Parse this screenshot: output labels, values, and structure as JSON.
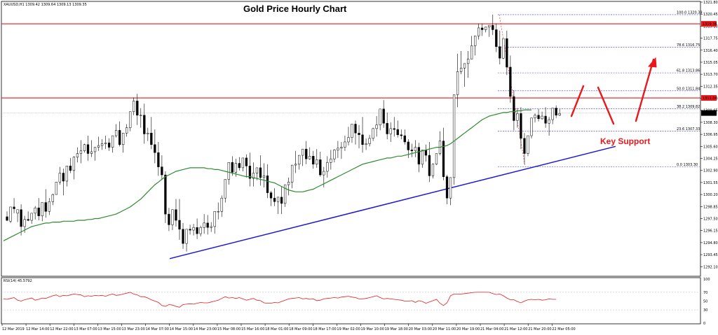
{
  "header": {
    "symbol_info": "XAUUSD,H1  1309.42 1309.64 1309.13 1309.35",
    "rsi_label": "RSI(14) 45.5792"
  },
  "colors": {
    "candle_up": "#ffffff",
    "candle_down": "#000000",
    "candle_outline": "#000000",
    "ma_line": "#2e8b2e",
    "trendline": "#1a1ad6",
    "resistance": "#e8191c",
    "arrows": "#e8191c",
    "rsi_line": "#e8191c",
    "fib_lines": "#3b3bd6",
    "label_bg": "#000000"
  },
  "chart_data": {
    "type": "candlestick",
    "title": "Gold Price Hourly Chart",
    "annotation": "Key Support",
    "ylim": [
      1291.1,
      1321.8
    ],
    "y_ticks": [
      "1321.80",
      "1320.45",
      "1319.10",
      "1317.75",
      "1316.40",
      "1315.05",
      "1313.70",
      "1312.35",
      "1311.00",
      "1309.65",
      "1308.30",
      "1306.95",
      "1305.60",
      "1304.25",
      "1302.90",
      "1301.55",
      "1300.20",
      "1298.85",
      "1297.50",
      "1296.15",
      "1294.80",
      "1293.45",
      "1292.10"
    ],
    "x_labels": [
      "12 Mar 2019",
      "12 Mar 14:00",
      "12 Mar 22:00",
      "13 Mar 07:00",
      "13 Mar 15:00",
      "13 Mar 23:00",
      "14 Mar 07:00",
      "14 Mar 15:00",
      "14 Mar 23:00",
      "15 Mar 08:00",
      "15 Mar 16:00",
      "18 Mar 01:00",
      "18 Mar 09:00",
      "18 Mar 17:00",
      "19 Mar 02:00",
      "19 Mar 10:00",
      "19 Mar 18:00",
      "20 Mar 03:00",
      "20 Mar 11:00",
      "20 Mar 19:00",
      "21 Mar 04:00",
      "21 Mar 12:00",
      "21 Mar 20:00",
      "22 Mar 05:00"
    ],
    "horizontal_levels": [
      {
        "label": "1319.36",
        "value": 1319.36
      },
      {
        "label": "1311.04",
        "value": 1311.04
      }
    ],
    "current_price_label": "1309.35",
    "current_price": 1309.35,
    "fibonacci": [
      {
        "label": "100.0 1320.39",
        "value": 1320.39
      },
      {
        "label": "78.6 1316.75",
        "value": 1316.75
      },
      {
        "label": "61.8 1313.86",
        "value": 1313.86
      },
      {
        "label": "50.0 1311.84",
        "value": 1311.84
      },
      {
        "label": "38.2 1309.82",
        "value": 1309.82
      },
      {
        "label": "23.6 1307.33",
        "value": 1307.33
      },
      {
        "label": "0.0 1303.30",
        "value": 1303.3
      }
    ],
    "trendline": {
      "from": [
        0,
        1293.0
      ],
      "to": [
        187,
        1305.6
      ]
    },
    "candles": [
      [
        1297.7,
        1298.3,
        1297.3,
        1297.2
      ],
      [
        1297.2,
        1297.6,
        1298.8,
        1297.0
      ],
      [
        1298.8,
        1299.8,
        1298.6,
        1298.1
      ],
      [
        1298.1,
        1298.4,
        1298.5,
        1297.1
      ],
      [
        1298.5,
        1299.1,
        1296.6,
        1295.6
      ],
      [
        1296.6,
        1297.8,
        1297.4,
        1295.9
      ],
      [
        1297.4,
        1298.3,
        1297.3,
        1297.2
      ],
      [
        1297.3,
        1298.0,
        1298.1,
        1296.9
      ],
      [
        1298.1,
        1298.9,
        1298.7,
        1297.4
      ],
      [
        1298.7,
        1299.8,
        1297.8,
        1297.3
      ],
      [
        1297.8,
        1298.6,
        1299.3,
        1297.2
      ],
      [
        1299.3,
        1300.8,
        1298.3,
        1297.6
      ],
      [
        1298.3,
        1299.8,
        1299.4,
        1297.9
      ],
      [
        1299.4,
        1300.3,
        1300.2,
        1299.0
      ],
      [
        1300.2,
        1301.6,
        1301.6,
        1300.2
      ],
      [
        1301.6,
        1303.3,
        1302.6,
        1301.3
      ],
      [
        1302.6,
        1303.1,
        1301.7,
        1300.1
      ],
      [
        1301.7,
        1303.3,
        1303.4,
        1301.1
      ],
      [
        1303.4,
        1304.3,
        1302.9,
        1302.6
      ],
      [
        1302.9,
        1304.5,
        1304.4,
        1301.9
      ],
      [
        1304.4,
        1305.5,
        1304.8,
        1303.8
      ],
      [
        1304.8,
        1306.3,
        1305.1,
        1303.7
      ],
      [
        1305.1,
        1305.9,
        1305.8,
        1304.9
      ],
      [
        1305.8,
        1306.8,
        1304.8,
        1304.0
      ],
      [
        1304.8,
        1306.3,
        1305.0,
        1304.4
      ],
      [
        1305.0,
        1305.2,
        1305.5,
        1304.0
      ],
      [
        1305.5,
        1306.7,
        1305.7,
        1305.1
      ],
      [
        1305.7,
        1306.4,
        1305.9,
        1305.2
      ],
      [
        1305.9,
        1306.8,
        1306.0,
        1305.3
      ],
      [
        1306.0,
        1306.5,
        1305.5,
        1305.1
      ],
      [
        1305.5,
        1306.4,
        1306.8,
        1304.9
      ],
      [
        1306.8,
        1308.1,
        1307.4,
        1306.6
      ],
      [
        1307.4,
        1308.4,
        1305.8,
        1305.6
      ],
      [
        1305.8,
        1306.7,
        1307.1,
        1304.9
      ],
      [
        1307.1,
        1308.1,
        1307.7,
        1306.7
      ],
      [
        1307.7,
        1309.0,
        1309.5,
        1307.3
      ],
      [
        1309.5,
        1311.1,
        1310.7,
        1309.1
      ],
      [
        1310.7,
        1311.5,
        1309.1,
        1308.0
      ],
      [
        1309.1,
        1309.9,
        1309.1,
        1307.7
      ],
      [
        1309.1,
        1310.4,
        1307.0,
        1305.9
      ],
      [
        1307.0,
        1307.7,
        1307.1,
        1306.2
      ],
      [
        1307.1,
        1308.9,
        1305.8,
        1305.3
      ],
      [
        1305.8,
        1307.5,
        1304.9,
        1303.7
      ],
      [
        1304.9,
        1306.1,
        1303.3,
        1302.3
      ],
      [
        1303.3,
        1304.6,
        1302.4,
        1301.9
      ],
      [
        1302.4,
        1302.8,
        1298.0,
        1297.0
      ],
      [
        1298.0,
        1298.7,
        1296.8,
        1296.1
      ],
      [
        1296.8,
        1298.5,
        1298.5,
        1296.2
      ],
      [
        1298.5,
        1299.7,
        1297.3,
        1296.6
      ],
      [
        1297.3,
        1299.7,
        1296.3,
        1295.1
      ],
      [
        1296.3,
        1297.0,
        1294.7,
        1294.1
      ],
      [
        1294.7,
        1296.1,
        1296.3,
        1293.8
      ],
      [
        1296.3,
        1296.8,
        1296.2,
        1295.7
      ],
      [
        1296.2,
        1296.9,
        1296.5,
        1295.6
      ],
      [
        1296.5,
        1297.5,
        1295.8,
        1295.2
      ],
      [
        1295.8,
        1296.7,
        1296.5,
        1295.5
      ],
      [
        1296.5,
        1298.0,
        1297.0,
        1295.8
      ],
      [
        1297.0,
        1297.9,
        1296.5,
        1295.7
      ],
      [
        1296.5,
        1297.1,
        1296.6,
        1296.0
      ],
      [
        1296.6,
        1298.1,
        1298.3,
        1295.8
      ],
      [
        1298.3,
        1299.3,
        1298.3,
        1297.4
      ],
      [
        1298.3,
        1300.1,
        1299.8,
        1297.7
      ],
      [
        1299.8,
        1300.8,
        1301.9,
        1299.3
      ],
      [
        1301.9,
        1303.5,
        1303.8,
        1301.3
      ],
      [
        1303.8,
        1304.5,
        1302.7,
        1302.3
      ],
      [
        1302.7,
        1304.2,
        1303.7,
        1302.2
      ],
      [
        1303.7,
        1304.4,
        1303.2,
        1302.9
      ],
      [
        1303.2,
        1304.0,
        1304.3,
        1302.8
      ],
      [
        1304.3,
        1304.7,
        1303.4,
        1302.1
      ],
      [
        1303.4,
        1304.9,
        1302.0,
        1301.1
      ],
      [
        1302.0,
        1303.8,
        1302.6,
        1301.1
      ],
      [
        1302.6,
        1303.2,
        1303.2,
        1301.8
      ],
      [
        1303.2,
        1304.6,
        1302.1,
        1301.2
      ],
      [
        1302.1,
        1303.7,
        1302.3,
        1301.0
      ],
      [
        1302.3,
        1303.6,
        1300.4,
        1299.8
      ],
      [
        1300.4,
        1300.6,
        1299.8,
        1298.9
      ],
      [
        1299.8,
        1300.9,
        1299.4,
        1298.9
      ],
      [
        1299.4,
        1299.8,
        1299.9,
        1298.0
      ],
      [
        1299.9,
        1301.1,
        1299.2,
        1298.0
      ],
      [
        1299.2,
        1300.3,
        1301.3,
        1298.8
      ],
      [
        1301.3,
        1302.1,
        1301.6,
        1300.1
      ],
      [
        1301.6,
        1303.5,
        1303.5,
        1300.9
      ],
      [
        1303.5,
        1305.1,
        1303.6,
        1302.6
      ],
      [
        1303.6,
        1304.4,
        1304.6,
        1303.0
      ],
      [
        1304.6,
        1305.2,
        1305.3,
        1303.4
      ],
      [
        1305.3,
        1306.2,
        1304.2,
        1303.6
      ],
      [
        1304.2,
        1305.5,
        1304.5,
        1304.1
      ],
      [
        1304.5,
        1305.1,
        1303.6,
        1303.1
      ],
      [
        1303.6,
        1305.3,
        1304.1,
        1303.2
      ],
      [
        1304.1,
        1305.0,
        1302.4,
        1302.2
      ],
      [
        1302.4,
        1303.3,
        1302.8,
        1301.0
      ],
      [
        1302.8,
        1304.5,
        1303.8,
        1302.1
      ],
      [
        1303.8,
        1305.2,
        1304.2,
        1303.0
      ],
      [
        1304.2,
        1305.3,
        1305.2,
        1303.8
      ],
      [
        1305.2,
        1306.2,
        1305.4,
        1304.3
      ],
      [
        1305.4,
        1306.1,
        1305.5,
        1304.2
      ],
      [
        1305.5,
        1306.8,
        1306.1,
        1305.1
      ],
      [
        1306.1,
        1307.8,
        1306.6,
        1305.7
      ],
      [
        1306.6,
        1307.4,
        1308.1,
        1306.0
      ],
      [
        1308.1,
        1308.5,
        1307.1,
        1305.8
      ],
      [
        1307.1,
        1308.0,
        1306.9,
        1305.4
      ],
      [
        1306.9,
        1308.9,
        1305.8,
        1304.9
      ],
      [
        1305.8,
        1306.5,
        1305.9,
        1305.2
      ],
      [
        1305.9,
        1306.9,
        1306.5,
        1305.6
      ],
      [
        1306.5,
        1307.7,
        1307.6,
        1306.2
      ],
      [
        1307.6,
        1309.0,
        1308.0,
        1306.7
      ],
      [
        1308.0,
        1309.5,
        1309.8,
        1307.4
      ],
      [
        1309.8,
        1310.8,
        1308.2,
        1307.7
      ],
      [
        1308.2,
        1309.4,
        1307.0,
        1306.4
      ],
      [
        1307.0,
        1308.3,
        1307.6,
        1306.1
      ],
      [
        1307.6,
        1308.9,
        1307.5,
        1306.7
      ],
      [
        1307.5,
        1308.5,
        1306.9,
        1306.6
      ],
      [
        1306.9,
        1307.5,
        1306.8,
        1306.4
      ],
      [
        1306.8,
        1307.5,
        1306.1,
        1305.8
      ],
      [
        1306.1,
        1306.4,
        1305.2,
        1304.3
      ],
      [
        1305.2,
        1305.9,
        1305.1,
        1304.4
      ],
      [
        1305.1,
        1306.3,
        1305.5,
        1304.4
      ],
      [
        1305.5,
        1306.0,
        1303.6,
        1302.7
      ],
      [
        1303.6,
        1304.8,
        1305.2,
        1303.2
      ],
      [
        1305.2,
        1305.8,
        1304.6,
        1303.9
      ],
      [
        1304.6,
        1306.1,
        1302.3,
        1301.6
      ],
      [
        1302.3,
        1303.7,
        1303.6,
        1302.0
      ],
      [
        1303.6,
        1304.8,
        1304.8,
        1303.5
      ],
      [
        1304.8,
        1307.3,
        1306.2,
        1304.6
      ],
      [
        1306.2,
        1307.7,
        1302.2,
        1301.8
      ],
      [
        1302.2,
        1302.4,
        1299.8,
        1299.1
      ],
      [
        1299.8,
        1300.2,
        1302.1,
        1299.0
      ],
      [
        1302.1,
        1303.9,
        1311.4,
        1301.3
      ],
      [
        1311.4,
        1316.0,
        1314.0,
        1310.0
      ],
      [
        1314.0,
        1316.3,
        1314.4,
        1313.7
      ],
      [
        1314.4,
        1314.7,
        1314.9,
        1312.3
      ],
      [
        1314.9,
        1316.3,
        1315.4,
        1313.3
      ],
      [
        1315.4,
        1318.0,
        1316.9,
        1315.4
      ],
      [
        1316.9,
        1317.5,
        1318.0,
        1315.8
      ],
      [
        1318.0,
        1319.4,
        1318.9,
        1317.6
      ],
      [
        1318.9,
        1319.4,
        1318.7,
        1318.0
      ],
      [
        1318.7,
        1319.0,
        1319.0,
        1318.4
      ],
      [
        1319.0,
        1319.1,
        1319.2,
        1317.9
      ],
      [
        1319.2,
        1320.4,
        1318.7,
        1318.1
      ],
      [
        1318.7,
        1319.4,
        1316.8,
        1316.2
      ],
      [
        1316.8,
        1318.6,
        1315.5,
        1314.8
      ],
      [
        1315.5,
        1317.0,
        1317.7,
        1315.4
      ],
      [
        1317.7,
        1318.6,
        1314.5,
        1313.6
      ],
      [
        1314.5,
        1315.8,
        1311.2,
        1310.5
      ],
      [
        1311.2,
        1311.9,
        1308.5,
        1307.4
      ],
      [
        1308.5,
        1309.9,
        1309.3,
        1307.7
      ],
      [
        1309.3,
        1310.0,
        1306.5,
        1305.3
      ],
      [
        1306.5,
        1307.1,
        1304.8,
        1303.6
      ],
      [
        1304.8,
        1305.9,
        1306.8,
        1304.5
      ],
      [
        1306.8,
        1307.8,
        1308.8,
        1306.5
      ],
      [
        1308.8,
        1309.3,
        1309.1,
        1308.3
      ],
      [
        1309.1,
        1309.8,
        1308.7,
        1308.4
      ],
      [
        1308.7,
        1309.5,
        1309.0,
        1308.6
      ],
      [
        1309.0,
        1310.0,
        1308.2,
        1307.7
      ],
      [
        1308.2,
        1308.9,
        1308.6,
        1306.8
      ],
      [
        1308.6,
        1309.9,
        1309.9,
        1308.1
      ],
      [
        1309.9,
        1310.2,
        1309.1,
        1308.8
      ],
      [
        1309.1,
        1309.8,
        1309.3,
        1309.0
      ]
    ],
    "candle_range": [
      1,
      163
    ],
    "moving_average": {
      "color": "#2e8b2e",
      "values": [
        1295.0,
        1295.2,
        1295.4,
        1295.6,
        1295.8,
        1296.0,
        1296.2,
        1296.4,
        1296.6,
        1296.7,
        1296.8,
        1296.9,
        1297.0,
        1297.0,
        1297.1,
        1297.1,
        1297.1,
        1297.2,
        1297.2,
        1297.2,
        1297.2,
        1297.3,
        1297.3,
        1297.3,
        1297.4,
        1297.4,
        1297.5,
        1297.5,
        1297.6,
        1297.7,
        1297.8,
        1297.9,
        1298.0,
        1298.2,
        1298.4,
        1298.6,
        1298.8,
        1299.1,
        1299.4,
        1299.7,
        1300.1,
        1300.5,
        1300.9,
        1301.3,
        1301.6,
        1301.9,
        1302.2,
        1302.4,
        1302.6,
        1302.8,
        1302.9,
        1303.0,
        1303.1,
        1303.2,
        1303.2,
        1303.2,
        1303.2,
        1303.2,
        1303.1,
        1303.1,
        1303.0,
        1303.0,
        1302.9,
        1302.8,
        1302.7,
        1302.6,
        1302.5,
        1302.4,
        1302.3,
        1302.2,
        1302.2,
        1302.1,
        1302.0,
        1301.9,
        1301.8,
        1301.7,
        1301.6,
        1301.5,
        1301.3,
        1301.1,
        1300.9,
        1300.7,
        1300.6,
        1300.5,
        1300.5,
        1300.5,
        1300.6,
        1300.7,
        1300.8,
        1301.0,
        1301.2,
        1301.4,
        1301.6,
        1301.8,
        1302.0,
        1302.2,
        1302.4,
        1302.6,
        1302.8,
        1303.0,
        1303.2,
        1303.4,
        1303.6,
        1303.7,
        1303.8,
        1303.9,
        1304.0,
        1304.1,
        1304.2,
        1304.3,
        1304.3,
        1304.4,
        1304.5,
        1304.5,
        1304.6,
        1304.7,
        1304.8,
        1304.9,
        1305.0,
        1305.1,
        1305.2,
        1305.3,
        1305.4,
        1305.5,
        1305.5,
        1305.6,
        1305.7,
        1305.9,
        1306.2,
        1306.5,
        1306.8,
        1307.1,
        1307.4,
        1307.7,
        1308.0,
        1308.3,
        1308.6,
        1308.8,
        1309.0,
        1309.1,
        1309.2,
        1309.3,
        1309.4,
        1309.4,
        1309.5,
        1309.5,
        1309.6,
        1309.6,
        1309.7,
        1309.7,
        1309.7
      ]
    },
    "rsi": {
      "label": "RSI(14) 45.5792",
      "ylim": [
        0,
        100
      ],
      "levels": [
        70,
        30
      ],
      "y_ticks": [
        "100",
        "70",
        "50",
        "30",
        "0"
      ],
      "values": [
        55,
        54,
        56,
        58,
        52,
        50,
        53,
        55,
        57,
        52,
        54,
        57,
        56,
        59,
        62,
        64,
        60,
        63,
        62,
        64,
        66,
        65,
        64,
        60,
        62,
        61,
        63,
        62,
        63,
        61,
        64,
        66,
        63,
        64,
        66,
        68,
        70,
        66,
        64,
        60,
        60,
        57,
        53,
        50,
        47,
        40,
        38,
        42,
        41,
        38,
        36,
        42,
        43,
        44,
        43,
        45,
        47,
        46,
        46,
        48,
        50,
        52,
        56,
        60,
        57,
        58,
        56,
        58,
        55,
        52,
        54,
        56,
        52,
        51,
        46,
        45,
        45,
        47,
        46,
        49,
        52,
        55,
        56,
        57,
        58,
        55,
        56,
        54,
        55,
        51,
        52,
        55,
        56,
        57,
        58,
        57,
        59,
        60,
        61,
        59,
        58,
        55,
        55,
        56,
        58,
        60,
        62,
        58,
        55,
        56,
        55,
        54,
        53,
        52,
        50,
        50,
        51,
        47,
        51,
        49,
        45,
        48,
        51,
        54,
        45,
        40,
        46,
        62,
        66,
        66,
        66,
        67,
        68,
        69,
        70,
        70,
        70,
        70,
        70,
        67,
        65,
        66,
        62,
        57,
        53,
        53,
        49,
        46,
        50,
        53,
        54,
        53,
        54,
        52,
        53,
        55,
        54,
        54
      ]
    }
  }
}
